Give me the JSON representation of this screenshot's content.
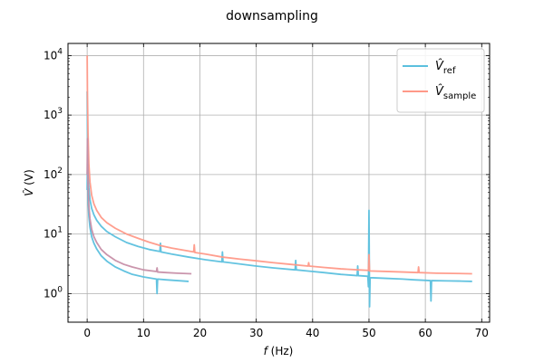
{
  "chart_data": {
    "type": "line",
    "title": "downsampling",
    "xlabel": "f (Hz)",
    "xlabel_parts": {
      "var": "f",
      "unit": " (Hz)"
    },
    "ylabel": "V̂ (V)",
    "ylabel_parts": {
      "var": "V̂",
      "unit": " (V)"
    },
    "xlim": [
      -3.4,
      71.4
    ],
    "ylim": [
      0.33,
      16000
    ],
    "yscale": "log",
    "xticks": [
      0,
      10,
      20,
      30,
      40,
      50,
      60,
      70
    ],
    "xtick_labels": [
      "0",
      "10",
      "20",
      "30",
      "40",
      "50",
      "60",
      "70"
    ],
    "yticks": [
      1,
      10,
      100,
      1000,
      10000
    ],
    "ytick_labels": [
      {
        "base": "10",
        "exp": "0"
      },
      {
        "base": "10",
        "exp": "1"
      },
      {
        "base": "10",
        "exp": "2"
      },
      {
        "base": "10",
        "exp": "3"
      },
      {
        "base": "10",
        "exp": "4"
      }
    ],
    "grid": true,
    "legend_position": "top-right",
    "series": [
      {
        "name": "V̂_ref",
        "legend": {
          "main": "V̂",
          "sub": "ref"
        },
        "color": "#5bc0de",
        "x": [
          0,
          0.05,
          0.15,
          0.3,
          0.5,
          0.8,
          1.2,
          1.7,
          2.5,
          3.5,
          5,
          7,
          9,
          11,
          12.9,
          13,
          13.1,
          15,
          18,
          21,
          23.9,
          24,
          24.1,
          27,
          30,
          33,
          36.9,
          37,
          37.1,
          39,
          42,
          45,
          47.9,
          48,
          48.1,
          49.8,
          49.9,
          50,
          50.1,
          50.2,
          53,
          56,
          58,
          60.9,
          61,
          61.1,
          64,
          66,
          68.3
        ],
        "y": [
          2500,
          600,
          120,
          60,
          38,
          27,
          21,
          17,
          13.5,
          11,
          9,
          7.2,
          6.2,
          5.5,
          5.1,
          7.0,
          5.0,
          4.6,
          4.1,
          3.7,
          3.4,
          5.0,
          3.4,
          3.15,
          2.9,
          2.7,
          2.5,
          3.6,
          2.5,
          2.4,
          2.25,
          2.1,
          2.0,
          2.9,
          2.0,
          1.95,
          1.3,
          25,
          0.6,
          1.85,
          1.8,
          1.75,
          1.7,
          1.65,
          0.75,
          1.65,
          1.63,
          1.62,
          1.6
        ]
      },
      {
        "name": "V̂_sample",
        "legend": {
          "main": "V̂",
          "sub": "sample"
        },
        "color": "#ff9988",
        "x": [
          0,
          0.05,
          0.15,
          0.3,
          0.5,
          0.8,
          1.2,
          1.7,
          2.5,
          3.5,
          5,
          7,
          9,
          11,
          13,
          15,
          18.9,
          19,
          19.1,
          21,
          24,
          27,
          30,
          33,
          36,
          39.2,
          39.3,
          39.4,
          42,
          45,
          48,
          49.9,
          50,
          50.1,
          53,
          56,
          58.7,
          58.8,
          58.9,
          62,
          65,
          68.3
        ],
        "y": [
          10000,
          2200,
          500,
          150,
          75,
          45,
          32,
          25,
          19,
          15.5,
          12.5,
          10,
          8.5,
          7.3,
          6.4,
          5.8,
          5.0,
          6.6,
          4.9,
          4.6,
          4.1,
          3.8,
          3.55,
          3.3,
          3.1,
          2.9,
          3.3,
          2.9,
          2.75,
          2.6,
          2.5,
          2.45,
          4.5,
          2.4,
          2.35,
          2.3,
          2.25,
          2.8,
          2.25,
          2.2,
          2.18,
          2.15
        ]
      },
      {
        "name": "",
        "color": "#5bc0de",
        "x": [
          0,
          0.05,
          0.15,
          0.3,
          0.5,
          0.8,
          1.2,
          1.7,
          2.5,
          3.5,
          5,
          6.5,
          8,
          10,
          12.3,
          12.4,
          12.5,
          14,
          16,
          18
        ],
        "y": [
          55,
          150,
          40,
          20,
          13,
          9,
          7,
          5.6,
          4.3,
          3.5,
          2.8,
          2.4,
          2.1,
          1.9,
          1.75,
          1.0,
          1.75,
          1.7,
          1.65,
          1.6
        ]
      },
      {
        "name": "",
        "color": "#c78fa8",
        "x": [
          0,
          0.05,
          0.15,
          0.3,
          0.5,
          0.8,
          1.2,
          1.7,
          2.5,
          3.5,
          5,
          6.5,
          8,
          10,
          12.3,
          12.4,
          12.5,
          14,
          16,
          18.5
        ],
        "y": [
          100,
          400,
          70,
          30,
          18,
          12,
          9,
          7.2,
          5.5,
          4.5,
          3.6,
          3.1,
          2.8,
          2.5,
          2.35,
          2.7,
          2.3,
          2.25,
          2.2,
          2.15
        ]
      }
    ]
  }
}
